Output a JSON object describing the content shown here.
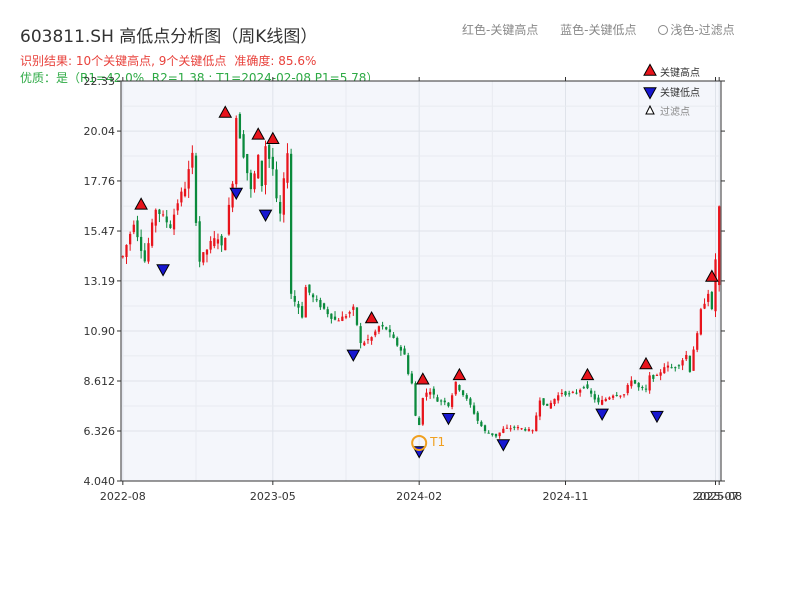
{
  "header": {
    "title": "603811.SH 高低点分析图（周K线图）",
    "legend_top": {
      "red": "红色-关键高点",
      "blue": "蓝色-关键低点",
      "light": "浅色-过滤点"
    },
    "result": "识别结果: 10个关键高点, 9个关键低点",
    "accuracy": "准确度: 85.6%",
    "quality": "优质：是（R1=42.0%, R2=1.38 ; T1=2024-02-08 P1=5.78）"
  },
  "chart_data": {
    "type": "candlestick",
    "ylim": [
      4.04,
      22.33
    ],
    "yticks": [
      "22.33",
      "20.04",
      "17.76",
      "15.47",
      "13.19",
      "10.90",
      "8.612",
      "6.326",
      "4.040"
    ],
    "xticks": [
      "2022-08",
      "2023-05",
      "2024-02",
      "2024-11",
      "2025-07",
      "2025-08"
    ],
    "xtick_index": [
      0,
      41,
      81,
      121,
      162,
      163
    ],
    "colors": {
      "up": "#e8141c",
      "down": "#0a8a3c",
      "high_marker": "#e8141c",
      "low_marker": "#1717d0",
      "t1": "#f0a020"
    },
    "legend": {
      "high": "关键高点",
      "low": "关键低点",
      "filtered": "过滤点",
      "position": "top-right"
    },
    "annotation": {
      "label": "T1",
      "index": 81,
      "price": 5.78
    },
    "series_path": [
      [
        0,
        14.3
      ],
      [
        3,
        15.9
      ],
      [
        6,
        14.1
      ],
      [
        9,
        16.5
      ],
      [
        13,
        15.7
      ],
      [
        15,
        16.8
      ],
      [
        17,
        17.5
      ],
      [
        19,
        18.9
      ],
      [
        20,
        16.0
      ],
      [
        21,
        14.1
      ],
      [
        24,
        14.9
      ],
      [
        26,
        15.2
      ],
      [
        27,
        14.7
      ],
      [
        28,
        15.3
      ],
      [
        30,
        17.8
      ],
      [
        31,
        20.7
      ],
      [
        33,
        19.0
      ],
      [
        35,
        17.3
      ],
      [
        37,
        18.8
      ],
      [
        38,
        17.6
      ],
      [
        39,
        19.4
      ],
      [
        40,
        18.8
      ],
      [
        41,
        18.3
      ],
      [
        42,
        16.8
      ],
      [
        43,
        16.2
      ],
      [
        45,
        19.2
      ],
      [
        46,
        12.5
      ],
      [
        48,
        12.0
      ],
      [
        49,
        11.6
      ],
      [
        50,
        12.9
      ],
      [
        52,
        12.4
      ],
      [
        55,
        11.9
      ],
      [
        58,
        11.4
      ],
      [
        60,
        11.5
      ],
      [
        63,
        11.9
      ],
      [
        64,
        11.2
      ],
      [
        65,
        10.3
      ],
      [
        68,
        10.6
      ],
      [
        70,
        11.1
      ],
      [
        72,
        11.0
      ],
      [
        74,
        10.5
      ],
      [
        77,
        9.8
      ],
      [
        78,
        9.0
      ],
      [
        79,
        8.5
      ],
      [
        80,
        7.0
      ],
      [
        81,
        6.6
      ],
      [
        82,
        7.9
      ],
      [
        84,
        8.2
      ],
      [
        86,
        7.7
      ],
      [
        88,
        7.7
      ],
      [
        89,
        7.5
      ],
      [
        90,
        8.0
      ],
      [
        91,
        8.5
      ],
      [
        93,
        8.0
      ],
      [
        95,
        7.5
      ],
      [
        97,
        6.8
      ],
      [
        99,
        6.3
      ],
      [
        102,
        6.1
      ],
      [
        104,
        6.4
      ],
      [
        107,
        6.5
      ],
      [
        110,
        6.4
      ],
      [
        112,
        6.3
      ],
      [
        114,
        7.8
      ],
      [
        116,
        7.4
      ],
      [
        118,
        7.8
      ],
      [
        120,
        8.1
      ],
      [
        122,
        8.0
      ],
      [
        124,
        8.1
      ],
      [
        126,
        8.4
      ],
      [
        128,
        8.0
      ],
      [
        130,
        7.6
      ],
      [
        132,
        7.8
      ],
      [
        134,
        8.0
      ],
      [
        137,
        8.0
      ],
      [
        139,
        8.7
      ],
      [
        141,
        8.3
      ],
      [
        143,
        8.2
      ],
      [
        144,
        8.8
      ],
      [
        146,
        8.8
      ],
      [
        148,
        9.3
      ],
      [
        150,
        9.2
      ],
      [
        152,
        9.4
      ],
      [
        154,
        9.8
      ],
      [
        155,
        9.1
      ],
      [
        156,
        10.1
      ],
      [
        157,
        10.7
      ],
      [
        158,
        11.8
      ],
      [
        160,
        12.7
      ],
      [
        161,
        11.8
      ],
      [
        162,
        14.2
      ],
      [
        163,
        16.6
      ]
    ],
    "key_highs": [
      {
        "index": 5,
        "price": 16.3
      },
      {
        "index": 28,
        "price": 20.5
      },
      {
        "index": 37,
        "price": 19.5
      },
      {
        "index": 41,
        "price": 19.3
      },
      {
        "index": 68,
        "price": 11.1
      },
      {
        "index": 82,
        "price": 8.3
      },
      {
        "index": 92,
        "price": 8.5
      },
      {
        "index": 127,
        "price": 8.5
      },
      {
        "index": 143,
        "price": 9.0
      },
      {
        "index": 161,
        "price": 13.0
      }
    ],
    "key_lows": [
      {
        "index": 11,
        "price": 14.1
      },
      {
        "index": 31,
        "price": 17.6
      },
      {
        "index": 39,
        "price": 16.6
      },
      {
        "index": 63,
        "price": 10.2
      },
      {
        "index": 81,
        "price": 5.78
      },
      {
        "index": 89,
        "price": 7.3
      },
      {
        "index": 104,
        "price": 6.1
      },
      {
        "index": 131,
        "price": 7.5
      },
      {
        "index": 146,
        "price": 7.4
      }
    ]
  }
}
